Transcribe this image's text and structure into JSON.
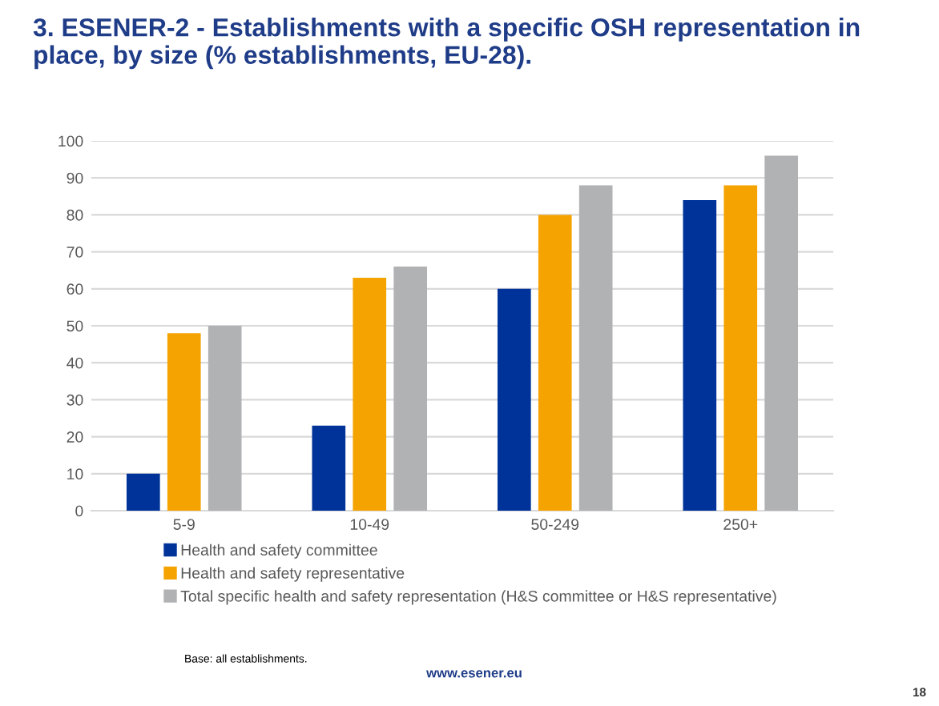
{
  "chart_data": {
    "type": "bar",
    "title": "3. ESENER-2 - Establishments with a specific OSH representation in place, by size (% establishments, EU-28).",
    "categories": [
      "5-9",
      "10-49",
      "50-249",
      "250+"
    ],
    "series": [
      {
        "name": "Health and safety committee",
        "color": "#003399",
        "values": [
          10,
          23,
          60,
          84
        ]
      },
      {
        "name": "Health and safety representative",
        "color": "#f5a300",
        "values": [
          48,
          63,
          80,
          88
        ]
      },
      {
        "name": "Total specific health and safety representation (H&S committee or H&S representative)",
        "color": "#b1b2b4",
        "values": [
          50,
          66,
          88,
          96
        ]
      }
    ],
    "ylim": [
      0,
      100
    ],
    "yticks": [
      0,
      10,
      20,
      30,
      40,
      50,
      60,
      70,
      80,
      90,
      100
    ],
    "grid": "y",
    "legend": "bottom",
    "annotations": [
      "Base: all establishments.",
      "www.esener.eu",
      "18"
    ]
  }
}
